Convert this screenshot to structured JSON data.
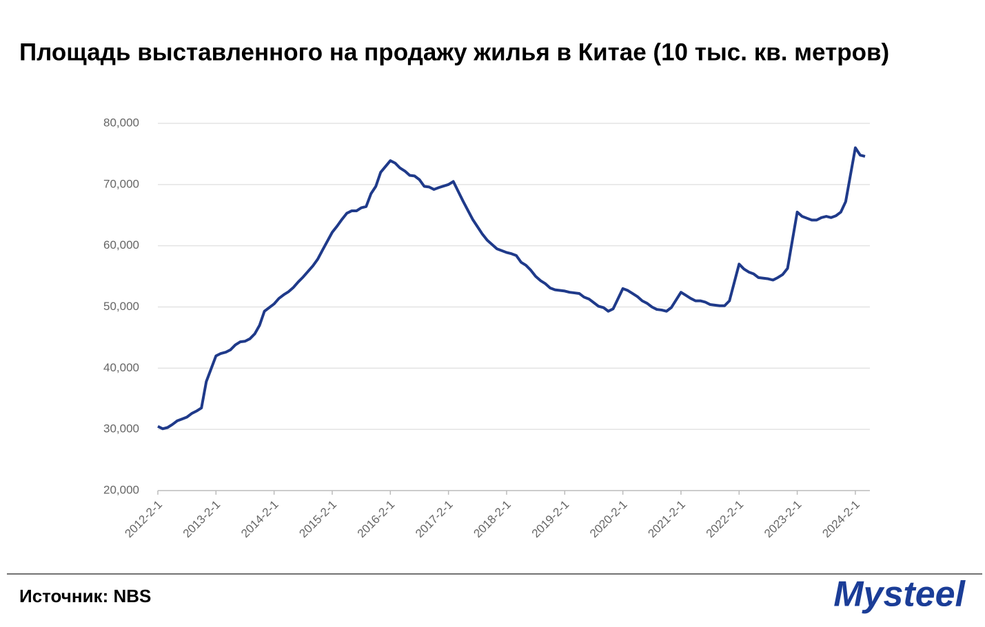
{
  "chart_data": {
    "type": "line",
    "title": "Площадь выставленного на продажу жилья в Китае (10 тыс. кв. метров)",
    "source": "Источник: NBS",
    "logo": "Mysteel",
    "x": [
      "2012-2-1",
      "2012-3-1",
      "2012-4-1",
      "2012-5-1",
      "2012-6-1",
      "2012-7-1",
      "2012-8-1",
      "2012-9-1",
      "2012-10-1",
      "2012-11-1",
      "2012-12-1",
      "2013-2-1",
      "2013-3-1",
      "2013-4-1",
      "2013-5-1",
      "2013-6-1",
      "2013-7-1",
      "2013-8-1",
      "2013-9-1",
      "2013-10-1",
      "2013-11-1",
      "2013-12-1",
      "2014-2-1",
      "2014-3-1",
      "2014-4-1",
      "2014-5-1",
      "2014-6-1",
      "2014-7-1",
      "2014-8-1",
      "2014-9-1",
      "2014-10-1",
      "2014-11-1",
      "2014-12-1",
      "2015-2-1",
      "2015-3-1",
      "2015-4-1",
      "2015-5-1",
      "2015-6-1",
      "2015-7-1",
      "2015-8-1",
      "2015-9-1",
      "2015-10-1",
      "2015-11-1",
      "2015-12-1",
      "2016-2-1",
      "2016-3-1",
      "2016-4-1",
      "2016-5-1",
      "2016-6-1",
      "2016-7-1",
      "2016-8-1",
      "2016-9-1",
      "2016-10-1",
      "2016-11-1",
      "2016-12-1",
      "2017-2-1",
      "2017-3-1",
      "2017-4-1",
      "2017-5-1",
      "2017-6-1",
      "2017-7-1",
      "2017-8-1",
      "2017-9-1",
      "2017-10-1",
      "2017-11-1",
      "2017-12-1",
      "2018-2-1",
      "2018-3-1",
      "2018-4-1",
      "2018-5-1",
      "2018-6-1",
      "2018-7-1",
      "2018-8-1",
      "2018-9-1",
      "2018-10-1",
      "2018-11-1",
      "2018-12-1",
      "2019-2-1",
      "2019-3-1",
      "2019-4-1",
      "2019-5-1",
      "2019-6-1",
      "2019-7-1",
      "2019-8-1",
      "2019-9-1",
      "2019-10-1",
      "2019-11-1",
      "2019-12-1",
      "2020-2-1",
      "2020-3-1",
      "2020-4-1",
      "2020-5-1",
      "2020-6-1",
      "2020-7-1",
      "2020-8-1",
      "2020-9-1",
      "2020-10-1",
      "2020-11-1",
      "2020-12-1",
      "2021-2-1",
      "2021-3-1",
      "2021-4-1",
      "2021-5-1",
      "2021-6-1",
      "2021-7-1",
      "2021-8-1",
      "2021-9-1",
      "2021-10-1",
      "2021-11-1",
      "2021-12-1",
      "2022-2-1",
      "2022-3-1",
      "2022-4-1",
      "2022-5-1",
      "2022-6-1",
      "2022-7-1",
      "2022-8-1",
      "2022-9-1",
      "2022-10-1",
      "2022-11-1",
      "2022-12-1",
      "2023-2-1",
      "2023-3-1",
      "2023-4-1",
      "2023-5-1",
      "2023-6-1",
      "2023-7-1",
      "2023-8-1",
      "2023-9-1",
      "2023-10-1",
      "2023-11-1",
      "2023-12-1",
      "2024-2-1",
      "2024-3-1",
      "2024-4-1"
    ],
    "series": [
      {
        "name": "Площадь выставленного на продажу жилья",
        "color": "#1f3a8a",
        "values": [
          30500,
          30100,
          30300,
          30800,
          31400,
          31700,
          32000,
          32600,
          33000,
          33500,
          37800,
          42000,
          42400,
          42600,
          43000,
          43800,
          44300,
          44400,
          44800,
          45600,
          47000,
          49300,
          50500,
          51400,
          52000,
          52500,
          53200,
          54100,
          54900,
          55800,
          56700,
          57800,
          59300,
          62200,
          63200,
          64300,
          65300,
          65700,
          65700,
          66200,
          66400,
          68500,
          69700,
          72000,
          73900,
          73500,
          72700,
          72200,
          71500,
          71400,
          70800,
          69700,
          69600,
          69200,
          69500,
          70000,
          70500,
          68900,
          67300,
          65800,
          64300,
          63100,
          61900,
          60900,
          60200,
          59500,
          58900,
          58700,
          58400,
          57300,
          56800,
          56000,
          55000,
          54300,
          53800,
          53100,
          52800,
          52600,
          52400,
          52300,
          52200,
          51600,
          51300,
          50700,
          50100,
          49900,
          49300,
          49700,
          53000,
          52700,
          52200,
          51700,
          51000,
          50600,
          50000,
          49600,
          49500,
          49300,
          49900,
          52400,
          51900,
          51400,
          51000,
          51000,
          50800,
          50400,
          50300,
          50200,
          50200,
          51000,
          57000,
          56200,
          55700,
          55400,
          54800,
          54700,
          54600,
          54400,
          54800,
          55300,
          56300,
          65500,
          64800,
          64500,
          64200,
          64200,
          64600,
          64800,
          64600,
          64900,
          65500,
          67200,
          76000,
          74800,
          74600
        ]
      }
    ],
    "xlim": [
      "2012-2-1",
      "2024-5-1"
    ],
    "xticks": [
      "2012-2-1",
      "2013-2-1",
      "2014-2-1",
      "2015-2-1",
      "2016-2-1",
      "2017-2-1",
      "2018-2-1",
      "2019-2-1",
      "2020-2-1",
      "2021-2-1",
      "2022-2-1",
      "2023-2-1",
      "2024-2-1"
    ],
    "ylim": [
      20000,
      80000
    ],
    "yticks": [
      {
        "value": 20000,
        "label": "20,000"
      },
      {
        "value": 30000,
        "label": "30,000"
      },
      {
        "value": 40000,
        "label": "40,000"
      },
      {
        "value": 50000,
        "label": "50,000"
      },
      {
        "value": 60000,
        "label": "60,000"
      },
      {
        "value": 70000,
        "label": "70,000"
      },
      {
        "value": 80000,
        "label": "80,000"
      }
    ],
    "grid": true
  }
}
